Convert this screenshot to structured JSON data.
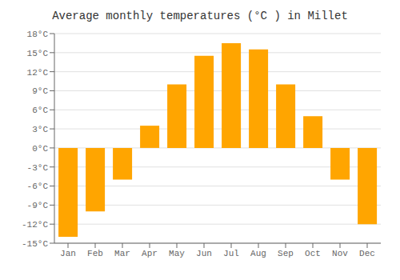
{
  "chart_data": {
    "type": "bar",
    "title": "Average monthly temperatures (°C ) in Millet",
    "categories": [
      "Jan",
      "Feb",
      "Mar",
      "Apr",
      "May",
      "Jun",
      "Jul",
      "Aug",
      "Sep",
      "Oct",
      "Nov",
      "Dec"
    ],
    "values": [
      -14,
      -10,
      -5,
      3.5,
      10,
      14.5,
      16.5,
      15.5,
      10,
      5,
      -5,
      -12
    ],
    "color": "#FFA500",
    "ylim": [
      -15,
      18
    ],
    "yticks": [
      {
        "value": -15,
        "label": "-15°C"
      },
      {
        "value": -12,
        "label": "-12°C"
      },
      {
        "value": -9,
        "label": "-9°C"
      },
      {
        "value": -6,
        "label": "-6°C"
      },
      {
        "value": -3,
        "label": "-3°C"
      },
      {
        "value": 0,
        "label": "0°C"
      },
      {
        "value": 3,
        "label": "3°C"
      },
      {
        "value": 6,
        "label": "6°C"
      },
      {
        "value": 9,
        "label": "9°C"
      },
      {
        "value": 12,
        "label": "12°C"
      },
      {
        "value": 15,
        "label": "15°C"
      },
      {
        "value": 18,
        "label": "18°C"
      }
    ],
    "grid": true
  }
}
